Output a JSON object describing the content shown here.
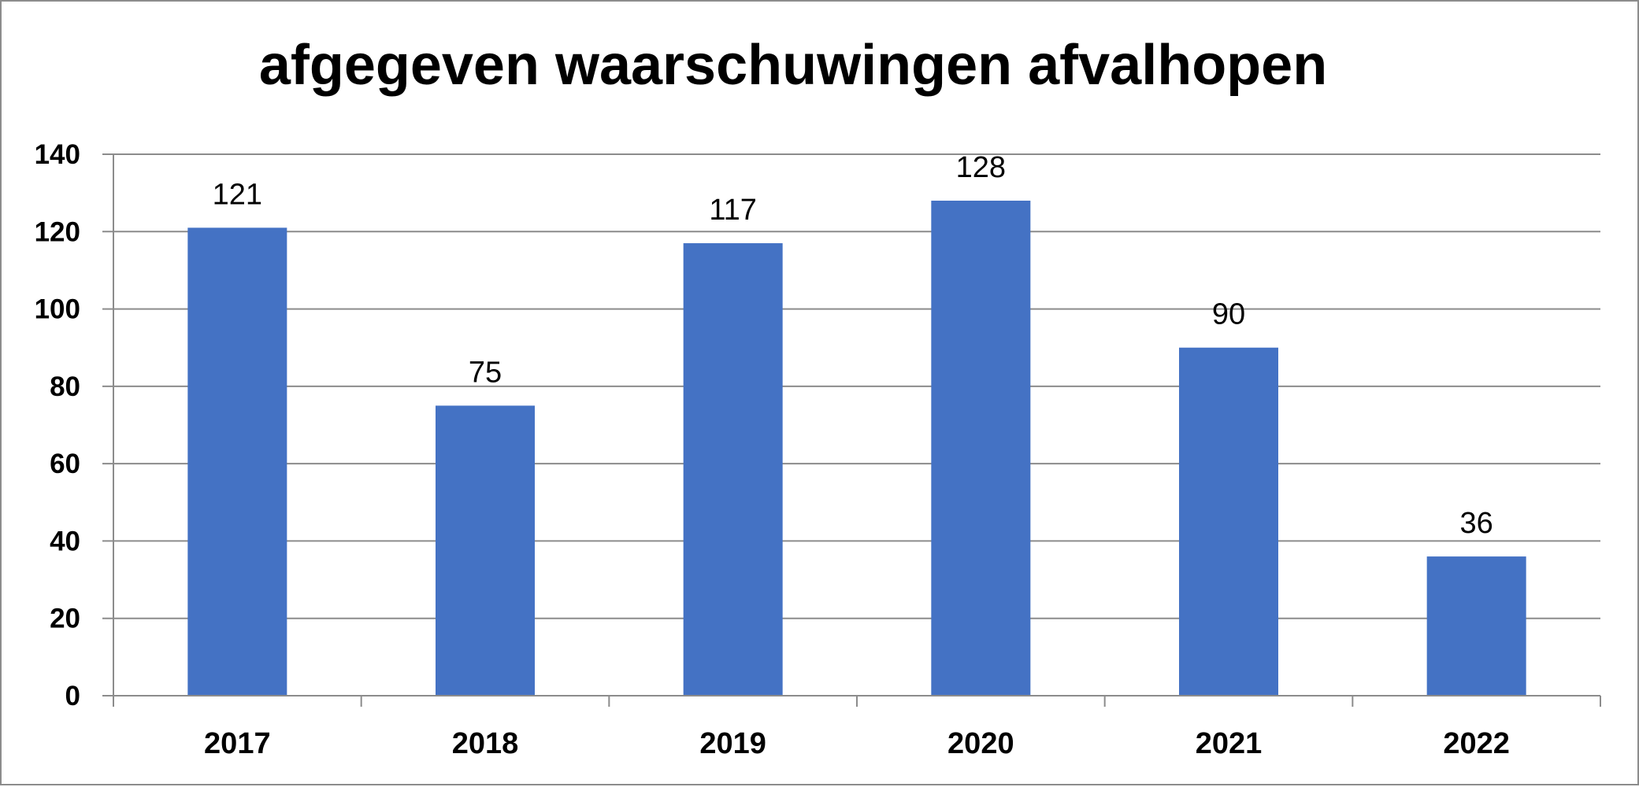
{
  "chart_data": {
    "type": "bar",
    "title": "afgegeven waarschuwingen afvalhopen",
    "categories": [
      "2017",
      "2018",
      "2019",
      "2020",
      "2021",
      "2022"
    ],
    "values": [
      121,
      75,
      117,
      128,
      90,
      36
    ],
    "ylim": [
      0,
      140
    ],
    "yticks": [
      0,
      20,
      40,
      60,
      80,
      100,
      120,
      140
    ],
    "xlabel": "",
    "ylabel": "",
    "grid": true,
    "legend": "none",
    "bar_color": "#4472C4",
    "data_labels": true
  }
}
